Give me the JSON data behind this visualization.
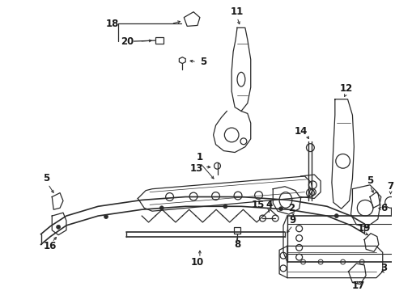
{
  "bg_color": "#ffffff",
  "line_color": "#2a2a2a",
  "lw": 0.9,
  "figsize": [
    4.89,
    3.6
  ],
  "dpi": 100
}
